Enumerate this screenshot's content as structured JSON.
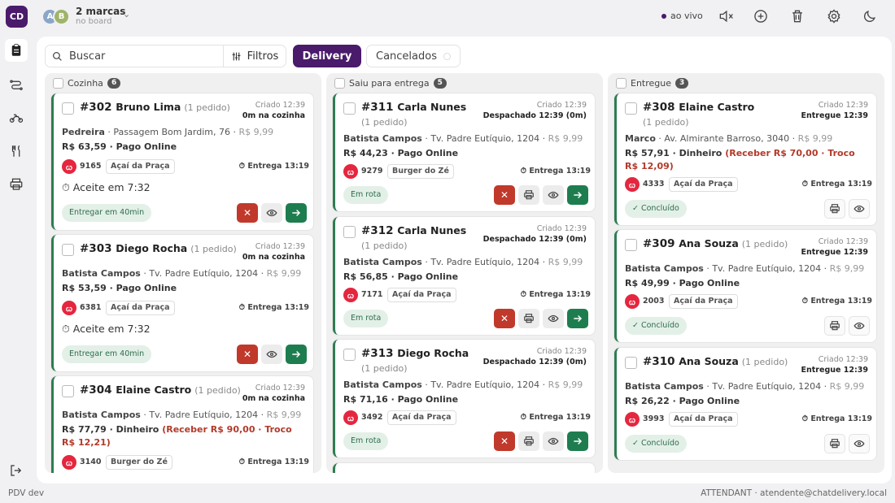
{
  "brand": {
    "initials": "CD"
  },
  "board": {
    "avatars": [
      "A",
      "B"
    ],
    "title": "2 marcas",
    "subtitle": "no board"
  },
  "live_label": "ao vivo",
  "toolbar": {
    "search_placeholder": "Buscar",
    "filters_label": "Filtros",
    "tab_delivery": "Delivery",
    "tab_cancelled": "Cancelados"
  },
  "columns": [
    {
      "label": "Cozinha",
      "count": "6"
    },
    {
      "label": "Saiu para entrega",
      "count": "5"
    },
    {
      "label": "Entregue",
      "count": "3"
    }
  ],
  "kitchen": [
    {
      "id": "#302",
      "name": "Bruno Lima",
      "qty": "(1 pedido)",
      "created": "Criado 12:39",
      "status": "0m na cozinha",
      "hood": "Pedreira",
      "street": " · Passagem Bom Jardim, 76 · ",
      "fee": "R$ 9,99",
      "pay": "R$ 63,59 · Pago Online",
      "troco": "",
      "code": "9165",
      "store": "Açaí da Praça",
      "delivery": "Entrega 13:19",
      "accept": "Aceite em 7:32",
      "chip": "Entregar em 40min"
    },
    {
      "id": "#303",
      "name": "Diego Rocha",
      "qty": "(1 pedido)",
      "created": "Criado 12:39",
      "status": "0m na cozinha",
      "hood": "Batista Campos",
      "street": " · Tv. Padre Eutíquio, 1204 · ",
      "fee": "R$ 9,99",
      "pay": "R$ 53,59 · Pago Online",
      "troco": "",
      "code": "6381",
      "store": "Açaí da Praça",
      "delivery": "Entrega 13:19",
      "accept": "Aceite em 7:32",
      "chip": "Entregar em 40min"
    },
    {
      "id": "#304",
      "name": "Elaine Castro",
      "qty": "(1 pedido)",
      "created": "Criado 12:39",
      "status": "0m na cozinha",
      "hood": "Batista Campos",
      "street": " · Tv. Padre Eutíquio, 1204 · ",
      "fee": "R$ 9,99",
      "pay": "R$ 77,79 · Dinheiro ",
      "troco": "(Receber R$ 90,00 · Troco R$ 12,21)",
      "code": "3140",
      "store": "Burger do Zé",
      "delivery": "Entrega 13:19"
    }
  ],
  "out": [
    {
      "id": "#311",
      "name": "Carla Nunes",
      "qty": "(1 pedido)",
      "created": "Criado 12:39",
      "status": "Despachado 12:39 (0m)",
      "hood": "Batista Campos",
      "street": " · Tv. Padre Eutíquio, 1204 · ",
      "fee": "R$ 9,99",
      "pay": "R$ 44,23 · Pago Online",
      "code": "9279",
      "store": "Burger do Zé",
      "delivery": "Entrega 13:19",
      "chip": "Em rota"
    },
    {
      "id": "#312",
      "name": "Carla Nunes",
      "qty": "(1 pedido)",
      "created": "Criado 12:39",
      "status": "Despachado 12:39 (0m)",
      "hood": "Batista Campos",
      "street": " · Tv. Padre Eutíquio, 1204 · ",
      "fee": "R$ 9,99",
      "pay": "R$ 56,85 · Pago Online",
      "code": "7171",
      "store": "Açaí da Praça",
      "delivery": "Entrega 13:19",
      "chip": "Em rota"
    },
    {
      "id": "#313",
      "name": "Diego Rocha",
      "qty": "(1 pedido)",
      "created": "Criado 12:39",
      "status": "Despachado 12:39 (0m)",
      "hood": "Batista Campos",
      "street": " · Tv. Padre Eutíquio, 1204 · ",
      "fee": "R$ 9,99",
      "pay": "R$ 71,16 · Pago Online",
      "code": "3492",
      "store": "Açaí da Praça",
      "delivery": "Entrega 13:19",
      "chip": "Em rota"
    }
  ],
  "done": [
    {
      "id": "#308",
      "name": "Elaine Castro",
      "qty": "(1 pedido)",
      "created": "Criado 12:39",
      "status": "Entregue 12:39",
      "hood": "Marco",
      "street": " · Av. Almirante Barroso, 3040 · ",
      "fee": "R$ 9,99",
      "pay": "R$ 57,91 · Dinheiro ",
      "troco": "(Receber R$ 70,00 · Troco R$ 12,09)",
      "code": "4333",
      "store": "Açaí da Praça",
      "delivery": "Entrega 13:19",
      "chip": "✓ Concluído"
    },
    {
      "id": "#309",
      "name": "Ana Souza",
      "qty": "(1 pedido)",
      "created": "Criado 12:39",
      "status": "Entregue 12:39",
      "hood": "Batista Campos",
      "street": " · Tv. Padre Eutíquio, 1204 · ",
      "fee": "R$ 9,99",
      "pay": "R$ 49,99 · Pago Online",
      "troco": "",
      "code": "2003",
      "store": "Açaí da Praça",
      "delivery": "Entrega 13:19",
      "chip": "✓ Concluído"
    },
    {
      "id": "#310",
      "name": "Ana Souza",
      "qty": "(1 pedido)",
      "created": "Criado 12:39",
      "status": "Entregue 12:39",
      "hood": "Batista Campos",
      "street": " · Tv. Padre Eutíquio, 1204 · ",
      "fee": "R$ 9,99",
      "pay": "R$ 26,22 · Pago Online",
      "troco": "",
      "code": "3993",
      "store": "Açaí da Praça",
      "delivery": "Entrega 13:19",
      "chip": "✓ Concluído"
    }
  ],
  "footer": {
    "left": "PDV dev",
    "right": "ATTENDANT · atendente@chatdelivery.local"
  },
  "colors": {
    "brand": "#4a1a6b",
    "accent_green": "#1e7d4f",
    "danger": "#c0392b",
    "troco": "#b23a2a"
  }
}
